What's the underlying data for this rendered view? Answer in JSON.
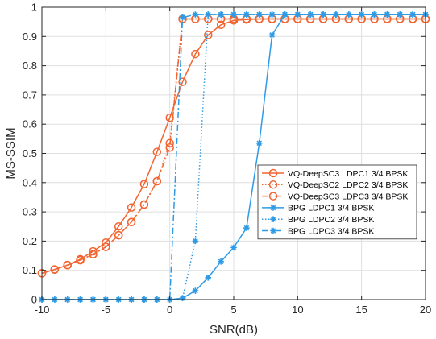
{
  "chart_data": {
    "type": "line",
    "xlabel": "SNR(dB)",
    "ylabel": "MS-SSIM",
    "xlim": [
      -10,
      20
    ],
    "ylim": [
      0,
      1
    ],
    "xticks": [
      -10,
      -5,
      0,
      5,
      10,
      15,
      20
    ],
    "yticks": [
      0,
      0.1,
      0.2,
      0.3,
      0.4,
      0.5,
      0.6,
      0.7,
      0.8,
      0.9,
      1
    ],
    "grid": true,
    "legend_position": "right",
    "x": [
      -10,
      -9,
      -8,
      -7,
      -6,
      -5,
      -4,
      -3,
      -2,
      -1,
      0,
      1,
      2,
      3,
      4,
      5,
      6,
      7,
      8,
      9,
      10,
      11,
      12,
      13,
      14,
      15,
      16,
      17,
      18,
      19,
      20
    ],
    "series": [
      {
        "name": "VQ-DeepSC3 LDPC1 3/4 BPSK",
        "color": "#f26430",
        "dash": "solid",
        "marker": "circle",
        "values": [
          0.09,
          0.103,
          0.118,
          0.138,
          0.165,
          0.195,
          0.25,
          0.315,
          0.395,
          0.505,
          0.622,
          0.745,
          0.84,
          0.905,
          0.94,
          0.955,
          0.958,
          0.96,
          0.96,
          0.96,
          0.96,
          0.96,
          0.96,
          0.96,
          0.96,
          0.96,
          0.96,
          0.96,
          0.96,
          0.96,
          0.96
        ]
      },
      {
        "name": "VQ-DeepSC2 LDPC2 3/4 BPSK",
        "color": "#f26430",
        "dash": "dotted",
        "marker": "circle",
        "values": [
          0.09,
          0.103,
          0.118,
          0.135,
          0.155,
          0.18,
          0.22,
          0.265,
          0.325,
          0.405,
          0.535,
          0.96,
          0.96,
          0.96,
          0.96,
          0.96,
          0.96,
          0.96,
          0.96,
          0.96,
          0.96,
          0.96,
          0.96,
          0.96,
          0.96,
          0.96,
          0.96,
          0.96,
          0.96,
          0.96,
          0.96
        ]
      },
      {
        "name": "VQ-DeepSC3 LDPC3 3/4 BPSK",
        "color": "#f26430",
        "dash": "dashdot",
        "marker": "circle",
        "values": [
          0.09,
          0.103,
          0.118,
          0.135,
          0.155,
          0.18,
          0.22,
          0.265,
          0.325,
          0.405,
          0.52,
          0.96,
          0.96,
          0.96,
          0.96,
          0.96,
          0.96,
          0.96,
          0.96,
          0.96,
          0.96,
          0.96,
          0.96,
          0.96,
          0.96,
          0.96,
          0.96,
          0.96,
          0.96,
          0.96,
          0.96
        ]
      },
      {
        "name": "BPG LDPC1 3/4 BPSK",
        "color": "#2f9be6",
        "dash": "solid",
        "marker": "star",
        "values": [
          0,
          0,
          0,
          0,
          0,
          0,
          0,
          0,
          0,
          0,
          0,
          0.005,
          0.03,
          0.075,
          0.13,
          0.178,
          0.245,
          0.535,
          0.905,
          0.975,
          0.975,
          0.975,
          0.975,
          0.975,
          0.975,
          0.975,
          0.975,
          0.975,
          0.975,
          0.975,
          0.975
        ]
      },
      {
        "name": "BPG LDPC2 3/4 BPSK",
        "color": "#2f9be6",
        "dash": "dotted",
        "marker": "star",
        "values": [
          0,
          0,
          0,
          0,
          0,
          0,
          0,
          0,
          0,
          0,
          0,
          0.005,
          0.2,
          0.975,
          0.975,
          0.975,
          0.975,
          0.975,
          0.975,
          0.975,
          0.975,
          0.975,
          0.975,
          0.975,
          0.975,
          0.975,
          0.975,
          0.975,
          0.975,
          0.975,
          0.975
        ]
      },
      {
        "name": "BPG LDPC3 3/4 BPSK",
        "color": "#2f9be6",
        "dash": "dashdot",
        "marker": "star",
        "values": [
          0,
          0,
          0,
          0,
          0,
          0,
          0,
          0,
          0,
          0,
          0,
          0.965,
          0.975,
          0.975,
          0.975,
          0.975,
          0.975,
          0.975,
          0.975,
          0.975,
          0.975,
          0.975,
          0.975,
          0.975,
          0.975,
          0.975,
          0.975,
          0.975,
          0.975,
          0.975,
          0.975
        ]
      }
    ]
  }
}
